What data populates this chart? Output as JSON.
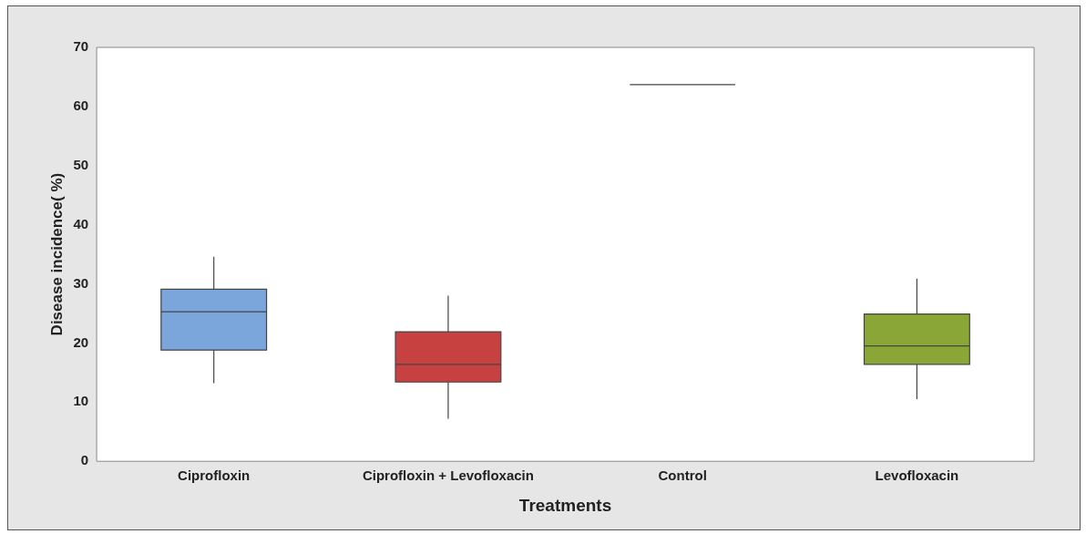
{
  "chart_data": {
    "type": "box",
    "xlabel": "Treatments",
    "ylabel": "Disease incidence( %)",
    "categories": [
      "Ciprofloxin",
      "Ciprofloxin + Levofloxacin",
      "Control",
      "Levofloxacin"
    ],
    "colors": [
      "#7aa6dc",
      "#c84141",
      "#444444",
      "#8aa637"
    ],
    "boxes": [
      {
        "low": 13.2,
        "q1": 18.8,
        "median": 25.3,
        "q3": 29.1,
        "high": 34.6
      },
      {
        "low": 7.2,
        "q1": 13.4,
        "median": 16.4,
        "q3": 21.9,
        "high": 28
      },
      {
        "low": 63.7,
        "q1": 63.7,
        "median": 63.7,
        "q3": 63.7,
        "high": 63.7
      },
      {
        "low": 10.5,
        "q1": 16.4,
        "median": 19.5,
        "q3": 24.9,
        "high": 30.9
      }
    ],
    "ylim": [
      0,
      70
    ],
    "yticks": [
      0,
      10,
      20,
      30,
      40,
      50,
      60,
      70
    ],
    "grid": false,
    "legend": false
  }
}
